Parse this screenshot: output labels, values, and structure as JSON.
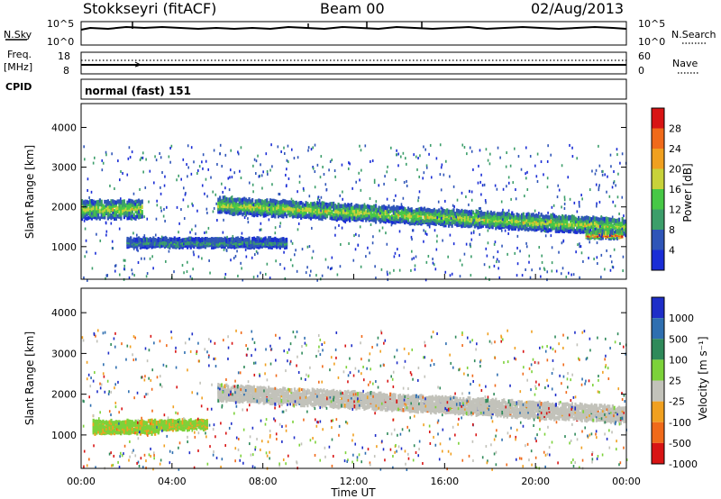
{
  "header": {
    "station": "Stokkseyri (fitACF)",
    "beam": "Beam 00",
    "date": "02/Aug/2013"
  },
  "noise_panel": {
    "left_label": "N.Sky",
    "left_ticks": [
      "10^5",
      "10^0"
    ],
    "right_ticks": [
      "10^5",
      "10^0"
    ],
    "right_label": "N.Search"
  },
  "freq_panel": {
    "left_label_1": "Freq.",
    "left_label_2": "[MHz]",
    "left_ticks": [
      "18",
      "8"
    ],
    "right_ticks": [
      "60",
      "0"
    ],
    "right_label": "Nave"
  },
  "cpid_panel": {
    "label": "CPID",
    "mode": "normal (fast) 151"
  },
  "colors": {
    "power_scale": [
      "#1a2dd6",
      "#2f55b8",
      "#3c9e6a",
      "#47c846",
      "#c8d23a",
      "#f0a020",
      "#f06a1a",
      "#d81414"
    ],
    "velocity_scale": [
      "#1e2ec8",
      "#2f6fb0",
      "#2f8a5a",
      "#7cd23a",
      "#c2c2ba",
      "#f0a020",
      "#f06a1a",
      "#d81414"
    ]
  },
  "chart_data": [
    {
      "type": "heatmap",
      "name": "power",
      "ylabel": "Slant Range [km]",
      "xlabel": "Time UT",
      "x_ticks": [
        "00:00",
        "04:00",
        "08:00",
        "12:00",
        "16:00",
        "20:00",
        "00:00"
      ],
      "y_ticks": [
        1000,
        2000,
        3000,
        4000
      ],
      "ylim": [
        180,
        4600
      ],
      "colorbar": {
        "label": "Power [dB]",
        "ticks": [
          "4",
          "8",
          "12",
          "16",
          "20",
          "24",
          "28"
        ]
      },
      "features": [
        {
          "t_start": 0.0,
          "t_end": 2.7,
          "range_center": 1950,
          "range_width": 450,
          "level": 4
        },
        {
          "t_start": 6.0,
          "t_end": 24.0,
          "range_center_start": 2050,
          "range_center_end": 1500,
          "range_width": 380,
          "level": 4
        },
        {
          "t_start": 2.0,
          "t_end": 9.0,
          "range_center": 1100,
          "range_width": 200,
          "level": 2
        },
        {
          "t_start": 22.2,
          "t_end": 23.8,
          "range_center": 1300,
          "range_width": 150,
          "level": 7
        }
      ]
    },
    {
      "type": "heatmap",
      "name": "velocity",
      "ylabel": "Slant Range [km]",
      "xlabel": "Time UT",
      "x_ticks": [
        "00:00",
        "04:00",
        "08:00",
        "12:00",
        "16:00",
        "20:00",
        "00:00"
      ],
      "y_ticks": [
        1000,
        2000,
        3000,
        4000
      ],
      "ylim": [
        180,
        4600
      ],
      "colorbar": {
        "label": "Velocity [m s⁻¹]",
        "ticks": [
          "1000",
          "500",
          "100",
          "25",
          "-25",
          "-100",
          "-500",
          "-1000"
        ]
      },
      "features": [
        {
          "t_start": 0.5,
          "t_end": 3.5,
          "range_center": 1200,
          "range_width": 300,
          "velocity_class": "100..500"
        },
        {
          "t_start": 3.5,
          "t_end": 5.5,
          "range_center": 1250,
          "range_width": 200,
          "velocity_class": "100..500"
        },
        {
          "t_start": 6.0,
          "t_end": 24.0,
          "range_center_start": 2050,
          "range_center_end": 1500,
          "range_width": 380,
          "velocity_class": "-25..25"
        }
      ]
    }
  ]
}
